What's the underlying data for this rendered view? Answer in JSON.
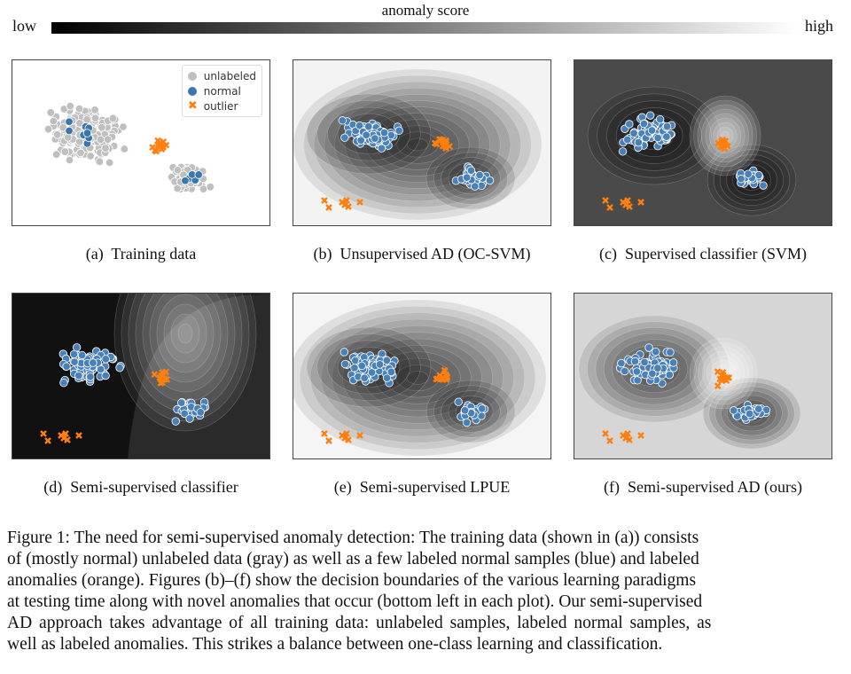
{
  "colorbar": {
    "title": "anomaly score",
    "low": "low",
    "high": "high"
  },
  "legend": {
    "items": [
      {
        "label": "unlabeled",
        "color": "#bfbfbf",
        "marker": "circle"
      },
      {
        "label": "normal",
        "color": "#3a76b0",
        "marker": "circle"
      },
      {
        "label": "outlier",
        "color": "#ff7f0e",
        "marker": "x"
      }
    ]
  },
  "panels": [
    {
      "caption": "(a)  Training data",
      "background": "none"
    },
    {
      "caption": "(b)  Unsupervised AD (OC-SVM)",
      "background": "light-outside-dark-clusters"
    },
    {
      "caption": "(c)  Supervised classifier (SVM)",
      "background": "dark-gray"
    },
    {
      "caption": "(d)  Semi-supervised classifier",
      "background": "black-left-light-right"
    },
    {
      "caption": "(e)  Semi-supervised LPUE",
      "background": "light-outside-dark-clusters"
    },
    {
      "caption": "(f)  Semi-supervised AD (ours)",
      "background": "light-gray-dark-clusters-light-outliers"
    }
  ],
  "caption": {
    "lines": [
      "Figure 1: The need for semi-supervised anomaly detection: The training data (shown in (a)) consists",
      "of (mostly normal) unlabeled data (gray) as well as a few labeled normal samples (blue) and labeled",
      "anomalies (orange). Figures (b)–(f) show the decision boundaries of the various learning paradigms",
      "at testing time along with novel anomalies that occur (bottom left in each plot). Our semi-supervised",
      "AD approach takes advantage of all training data: unlabeled samples, labeled normal samples, as",
      "well as labeled anomalies. This strikes a balance between one-class learning and classification."
    ]
  }
}
